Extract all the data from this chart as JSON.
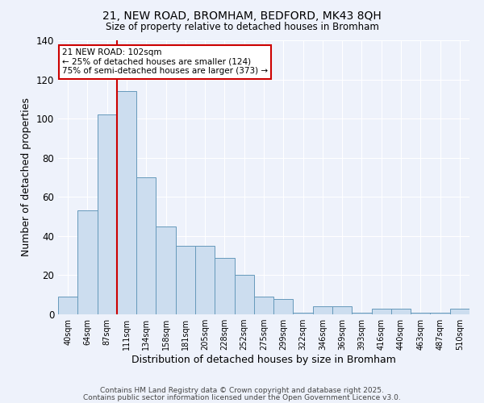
{
  "title1": "21, NEW ROAD, BROMHAM, BEDFORD, MK43 8QH",
  "title2": "Size of property relative to detached houses in Bromham",
  "xlabel": "Distribution of detached houses by size in Bromham",
  "ylabel": "Number of detached properties",
  "categories": [
    "40sqm",
    "64sqm",
    "87sqm",
    "111sqm",
    "134sqm",
    "158sqm",
    "181sqm",
    "205sqm",
    "228sqm",
    "252sqm",
    "275sqm",
    "299sqm",
    "322sqm",
    "346sqm",
    "369sqm",
    "393sqm",
    "416sqm",
    "440sqm",
    "463sqm",
    "487sqm",
    "510sqm"
  ],
  "values": [
    9,
    53,
    102,
    114,
    70,
    45,
    35,
    35,
    29,
    20,
    9,
    8,
    1,
    4,
    4,
    1,
    3,
    3,
    1,
    1,
    3
  ],
  "bar_color": "#ccddef",
  "bar_edge_color": "#6699bb",
  "background_color": "#eef2fb",
  "grid_color": "#ffffff",
  "red_line_x": 2.5,
  "annotation_text": "21 NEW ROAD: 102sqm\n← 25% of detached houses are smaller (124)\n75% of semi-detached houses are larger (373) →",
  "annotation_box_color": "#ffffff",
  "annotation_box_edge": "#cc0000",
  "footer1": "Contains HM Land Registry data © Crown copyright and database right 2025.",
  "footer2": "Contains public sector information licensed under the Open Government Licence v3.0.",
  "ylim": [
    0,
    140
  ],
  "yticks": [
    0,
    20,
    40,
    60,
    80,
    100,
    120,
    140
  ]
}
